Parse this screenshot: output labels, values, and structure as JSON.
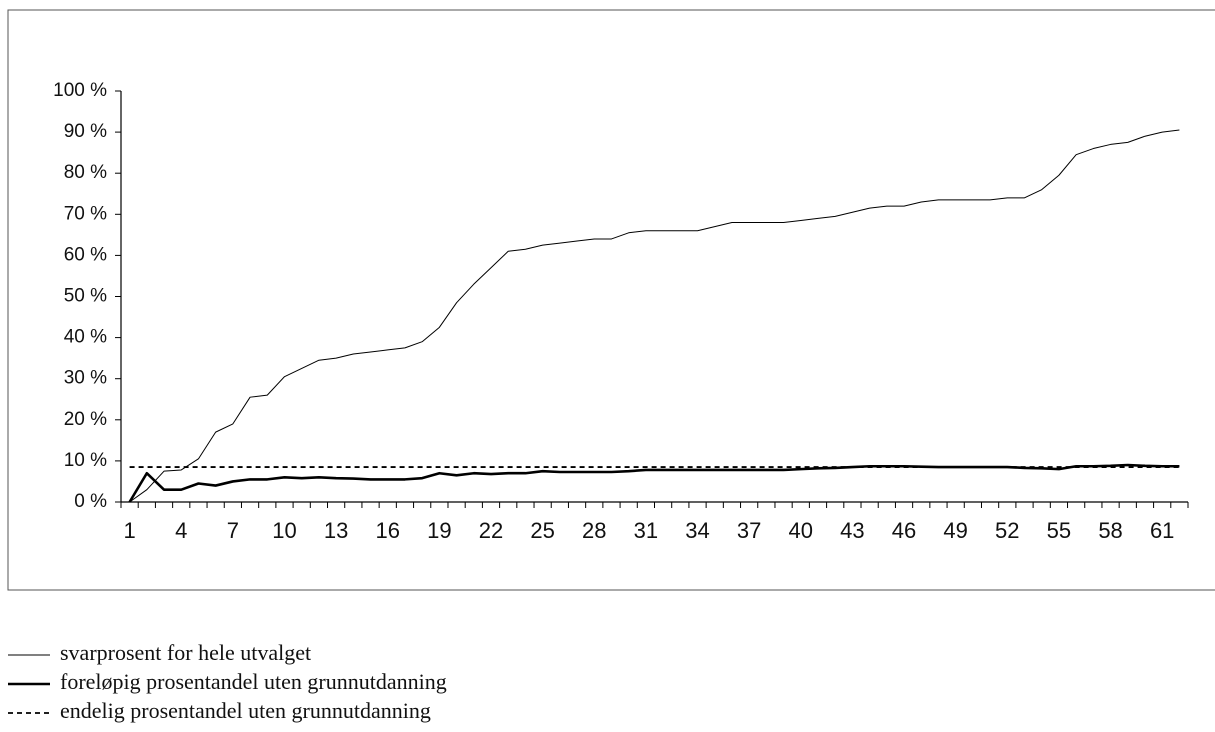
{
  "chart_data": {
    "type": "line",
    "categories": [
      "1",
      null,
      null,
      "4",
      null,
      null,
      "7",
      null,
      null,
      "10",
      null,
      null,
      "13",
      null,
      null,
      "16",
      null,
      null,
      "19",
      null,
      null,
      "22",
      null,
      null,
      "25",
      null,
      null,
      "28",
      null,
      null,
      "31",
      null,
      null,
      "34",
      null,
      null,
      "37",
      null,
      null,
      "40",
      null,
      null,
      "43",
      null,
      null,
      "46",
      null,
      null,
      "49",
      null,
      null,
      "52",
      null,
      null,
      "55",
      null,
      null,
      "58",
      null,
      null,
      "61",
      null
    ],
    "series": [
      {
        "name": "svarprosent for hele utvalget",
        "color": "#000000",
        "width": 1,
        "dash": false,
        "values": [
          0,
          3,
          7.5,
          7.8,
          10.5,
          17,
          19,
          25.5,
          26,
          30.5,
          32.5,
          34.5,
          35,
          36,
          36.5,
          37,
          37.5,
          39,
          42.5,
          48.5,
          53,
          57,
          61,
          61.5,
          62.5,
          63,
          63.5,
          64,
          64,
          65.5,
          66,
          66,
          66,
          66,
          67,
          68,
          68,
          68,
          68,
          68.5,
          69,
          69.5,
          70.5,
          71.5,
          72,
          72,
          73,
          73.5,
          73.5,
          73.5,
          73.5,
          74,
          74,
          76,
          79.5,
          84.5,
          86,
          87,
          87.5,
          89,
          90,
          90.5
        ]
      },
      {
        "name": "foreløpig prosentandel uten grunnutdanning",
        "color": "#000000",
        "width": 2.6,
        "dash": false,
        "values": [
          0,
          7,
          3,
          3,
          4.5,
          4,
          5,
          5.5,
          5.5,
          6,
          5.8,
          6,
          5.8,
          5.7,
          5.5,
          5.5,
          5.5,
          5.8,
          7,
          6.5,
          7,
          6.8,
          7,
          7,
          7.5,
          7.3,
          7.3,
          7.3,
          7.3,
          7.5,
          7.8,
          7.8,
          7.8,
          7.8,
          7.8,
          7.8,
          7.8,
          7.8,
          7.8,
          8,
          8.2,
          8.3,
          8.5,
          8.7,
          8.7,
          8.7,
          8.6,
          8.5,
          8.5,
          8.5,
          8.5,
          8.5,
          8.3,
          8.2,
          8,
          8.7,
          8.7,
          8.8,
          9,
          8.8,
          8.7,
          8.7
        ]
      },
      {
        "name": "endelig prosentandel uten grunnutdanning",
        "color": "#000000",
        "width": 1.8,
        "dash": true,
        "values": [
          8.5,
          8.5,
          8.5,
          8.5,
          8.5,
          8.5,
          8.5,
          8.5,
          8.5,
          8.5,
          8.5,
          8.5,
          8.5,
          8.5,
          8.5,
          8.5,
          8.5,
          8.5,
          8.5,
          8.5,
          8.5,
          8.5,
          8.5,
          8.5,
          8.5,
          8.5,
          8.5,
          8.5,
          8.5,
          8.5,
          8.5,
          8.5,
          8.5,
          8.5,
          8.5,
          8.5,
          8.5,
          8.5,
          8.5,
          8.5,
          8.5,
          8.5,
          8.5,
          8.5,
          8.5,
          8.5,
          8.5,
          8.5,
          8.5,
          8.5,
          8.5,
          8.5,
          8.5,
          8.5,
          8.5,
          8.5,
          8.5,
          8.5,
          8.5,
          8.5,
          8.5,
          8.5
        ]
      }
    ],
    "ylim": [
      0,
      100
    ],
    "yticks": [
      {
        "value": 0,
        "label": "0 %"
      },
      {
        "value": 10,
        "label": "10 %"
      },
      {
        "value": 20,
        "label": "20 %"
      },
      {
        "value": 30,
        "label": "30 %"
      },
      {
        "value": 40,
        "label": "40 %"
      },
      {
        "value": 50,
        "label": "50 %"
      },
      {
        "value": 60,
        "label": "60 %"
      },
      {
        "value": 70,
        "label": "70 %"
      },
      {
        "value": 80,
        "label": "80 %"
      },
      {
        "value": 90,
        "label": "90 %"
      },
      {
        "value": 100,
        "label": "100 %"
      }
    ],
    "grid": false
  }
}
